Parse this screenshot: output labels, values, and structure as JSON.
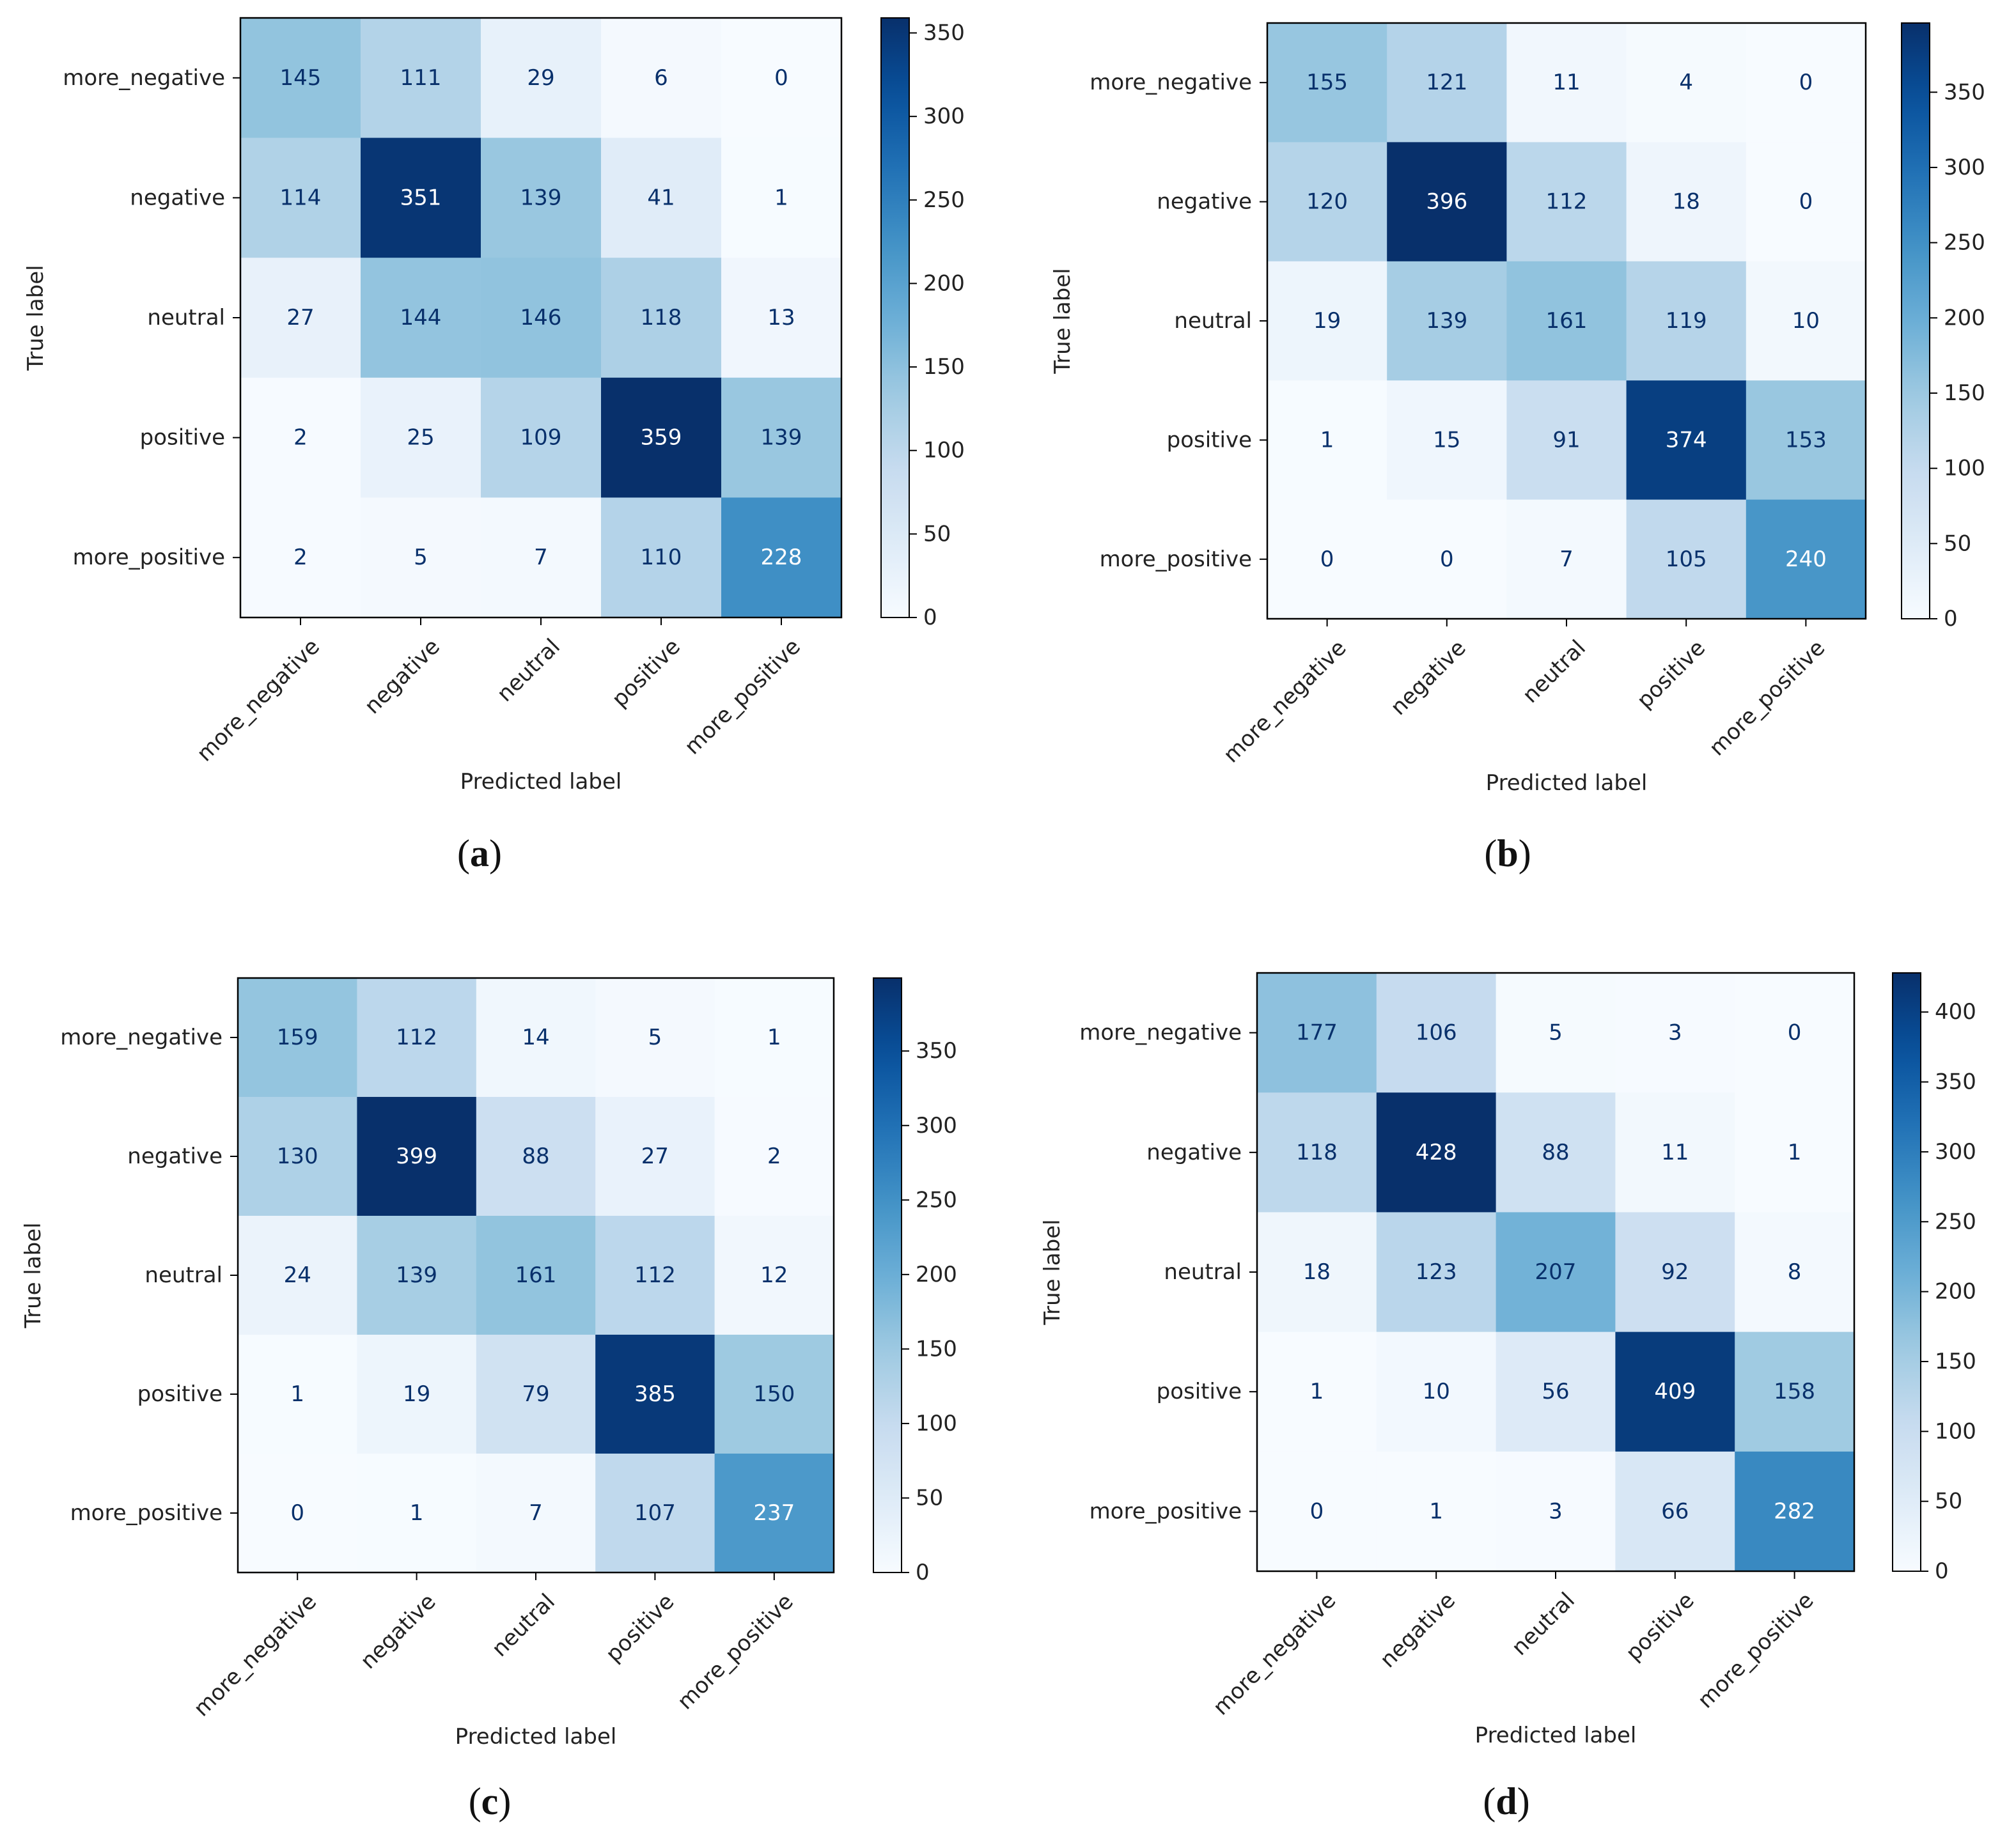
{
  "colormap": {
    "name": "Blues",
    "stops": [
      "#f7fbff",
      "#deebf7",
      "#c6dbef",
      "#9ecae1",
      "#6baed6",
      "#4292c6",
      "#2171b5",
      "#08519c",
      "#08306b"
    ]
  },
  "text_colors": {
    "light": "#ffffff",
    "dark_cell_text": "#08306b",
    "axis": "#222222"
  },
  "chart_data": [
    {
      "type": "heatmap",
      "panel": "a",
      "panel_label": "a",
      "xlabel": "Predicted label",
      "ylabel": "True label",
      "x_categories": [
        "more_negative",
        "negative",
        "neutral",
        "positive",
        "more_positive"
      ],
      "y_categories": [
        "more_negative",
        "negative",
        "neutral",
        "positive",
        "more_positive"
      ],
      "matrix": [
        [
          145,
          111,
          29,
          6,
          0
        ],
        [
          114,
          351,
          139,
          41,
          1
        ],
        [
          27,
          144,
          146,
          118,
          13
        ],
        [
          2,
          25,
          109,
          359,
          139
        ],
        [
          2,
          5,
          7,
          110,
          228
        ]
      ],
      "colorbar_ticks": [
        0,
        50,
        100,
        150,
        200,
        250,
        300,
        350
      ],
      "vmin": 0,
      "vmax": 359
    },
    {
      "type": "heatmap",
      "panel": "b",
      "panel_label": "b",
      "xlabel": "Predicted label",
      "ylabel": "True label",
      "x_categories": [
        "more_negative",
        "negative",
        "neutral",
        "positive",
        "more_positive"
      ],
      "y_categories": [
        "more_negative",
        "negative",
        "neutral",
        "positive",
        "more_positive"
      ],
      "matrix": [
        [
          155,
          121,
          11,
          4,
          0
        ],
        [
          120,
          396,
          112,
          18,
          0
        ],
        [
          19,
          139,
          161,
          119,
          10
        ],
        [
          1,
          15,
          91,
          374,
          153
        ],
        [
          0,
          0,
          7,
          105,
          240
        ]
      ],
      "colorbar_ticks": [
        0,
        50,
        100,
        150,
        200,
        250,
        300,
        350
      ],
      "vmin": 0,
      "vmax": 396
    },
    {
      "type": "heatmap",
      "panel": "c",
      "panel_label": "c",
      "xlabel": "Predicted label",
      "ylabel": "True label",
      "x_categories": [
        "more_negative",
        "negative",
        "neutral",
        "positive",
        "more_positive"
      ],
      "y_categories": [
        "more_negative",
        "negative",
        "neutral",
        "positive",
        "more_positive"
      ],
      "matrix": [
        [
          159,
          112,
          14,
          5,
          1
        ],
        [
          130,
          399,
          88,
          27,
          2
        ],
        [
          24,
          139,
          161,
          112,
          12
        ],
        [
          1,
          19,
          79,
          385,
          150
        ],
        [
          0,
          1,
          7,
          107,
          237
        ]
      ],
      "colorbar_ticks": [
        0,
        50,
        100,
        150,
        200,
        250,
        300,
        350
      ],
      "vmin": 0,
      "vmax": 399
    },
    {
      "type": "heatmap",
      "panel": "d",
      "panel_label": "d",
      "xlabel": "Predicted label",
      "ylabel": "True label",
      "x_categories": [
        "more_negative",
        "negative",
        "neutral",
        "positive",
        "more_positive"
      ],
      "y_categories": [
        "more_negative",
        "negative",
        "neutral",
        "positive",
        "more_positive"
      ],
      "matrix": [
        [
          177,
          106,
          5,
          3,
          0
        ],
        [
          118,
          428,
          88,
          11,
          1
        ],
        [
          18,
          123,
          207,
          92,
          8
        ],
        [
          1,
          10,
          56,
          409,
          158
        ],
        [
          0,
          1,
          3,
          66,
          282
        ]
      ],
      "colorbar_ticks": [
        0,
        50,
        100,
        150,
        200,
        250,
        300,
        350,
        400
      ],
      "vmin": 0,
      "vmax": 428
    }
  ]
}
